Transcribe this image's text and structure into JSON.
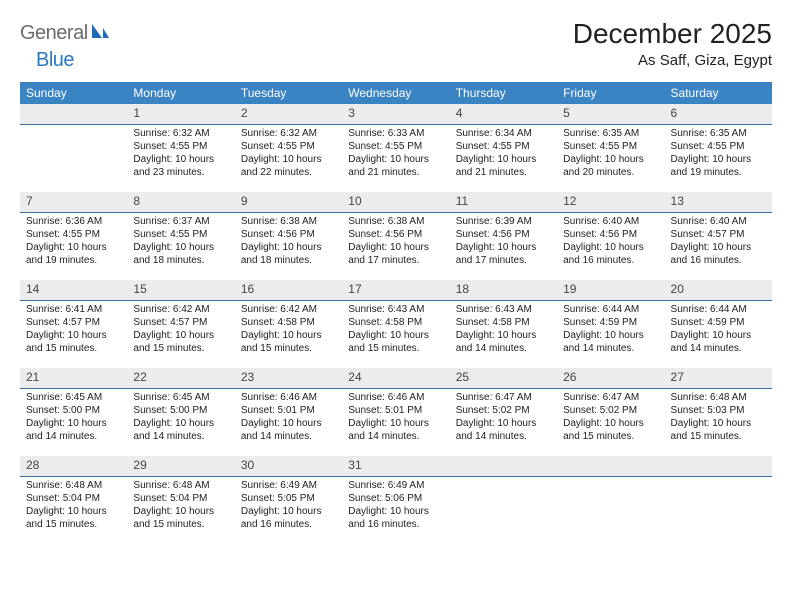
{
  "logo": {
    "part1": "General",
    "part2": "Blue"
  },
  "title": "December 2025",
  "location": "As Saff, Giza, Egypt",
  "colors": {
    "header_bg": "#3b84c4",
    "header_fg": "#ffffff",
    "daynum_bg": "#ececec",
    "daynum_border": "#3b6fa0",
    "logo_gray": "#6a6a6a",
    "logo_blue": "#2a7ac0"
  },
  "weekdays": [
    "Sunday",
    "Monday",
    "Tuesday",
    "Wednesday",
    "Thursday",
    "Friday",
    "Saturday"
  ],
  "days": [
    {
      "n": 1,
      "sr": "6:32 AM",
      "ss": "4:55 PM",
      "dl": "10 hours and 23 minutes."
    },
    {
      "n": 2,
      "sr": "6:32 AM",
      "ss": "4:55 PM",
      "dl": "10 hours and 22 minutes."
    },
    {
      "n": 3,
      "sr": "6:33 AM",
      "ss": "4:55 PM",
      "dl": "10 hours and 21 minutes."
    },
    {
      "n": 4,
      "sr": "6:34 AM",
      "ss": "4:55 PM",
      "dl": "10 hours and 21 minutes."
    },
    {
      "n": 5,
      "sr": "6:35 AM",
      "ss": "4:55 PM",
      "dl": "10 hours and 20 minutes."
    },
    {
      "n": 6,
      "sr": "6:35 AM",
      "ss": "4:55 PM",
      "dl": "10 hours and 19 minutes."
    },
    {
      "n": 7,
      "sr": "6:36 AM",
      "ss": "4:55 PM",
      "dl": "10 hours and 19 minutes."
    },
    {
      "n": 8,
      "sr": "6:37 AM",
      "ss": "4:55 PM",
      "dl": "10 hours and 18 minutes."
    },
    {
      "n": 9,
      "sr": "6:38 AM",
      "ss": "4:56 PM",
      "dl": "10 hours and 18 minutes."
    },
    {
      "n": 10,
      "sr": "6:38 AM",
      "ss": "4:56 PM",
      "dl": "10 hours and 17 minutes."
    },
    {
      "n": 11,
      "sr": "6:39 AM",
      "ss": "4:56 PM",
      "dl": "10 hours and 17 minutes."
    },
    {
      "n": 12,
      "sr": "6:40 AM",
      "ss": "4:56 PM",
      "dl": "10 hours and 16 minutes."
    },
    {
      "n": 13,
      "sr": "6:40 AM",
      "ss": "4:57 PM",
      "dl": "10 hours and 16 minutes."
    },
    {
      "n": 14,
      "sr": "6:41 AM",
      "ss": "4:57 PM",
      "dl": "10 hours and 15 minutes."
    },
    {
      "n": 15,
      "sr": "6:42 AM",
      "ss": "4:57 PM",
      "dl": "10 hours and 15 minutes."
    },
    {
      "n": 16,
      "sr": "6:42 AM",
      "ss": "4:58 PM",
      "dl": "10 hours and 15 minutes."
    },
    {
      "n": 17,
      "sr": "6:43 AM",
      "ss": "4:58 PM",
      "dl": "10 hours and 15 minutes."
    },
    {
      "n": 18,
      "sr": "6:43 AM",
      "ss": "4:58 PM",
      "dl": "10 hours and 14 minutes."
    },
    {
      "n": 19,
      "sr": "6:44 AM",
      "ss": "4:59 PM",
      "dl": "10 hours and 14 minutes."
    },
    {
      "n": 20,
      "sr": "6:44 AM",
      "ss": "4:59 PM",
      "dl": "10 hours and 14 minutes."
    },
    {
      "n": 21,
      "sr": "6:45 AM",
      "ss": "5:00 PM",
      "dl": "10 hours and 14 minutes."
    },
    {
      "n": 22,
      "sr": "6:45 AM",
      "ss": "5:00 PM",
      "dl": "10 hours and 14 minutes."
    },
    {
      "n": 23,
      "sr": "6:46 AM",
      "ss": "5:01 PM",
      "dl": "10 hours and 14 minutes."
    },
    {
      "n": 24,
      "sr": "6:46 AM",
      "ss": "5:01 PM",
      "dl": "10 hours and 14 minutes."
    },
    {
      "n": 25,
      "sr": "6:47 AM",
      "ss": "5:02 PM",
      "dl": "10 hours and 14 minutes."
    },
    {
      "n": 26,
      "sr": "6:47 AM",
      "ss": "5:02 PM",
      "dl": "10 hours and 15 minutes."
    },
    {
      "n": 27,
      "sr": "6:48 AM",
      "ss": "5:03 PM",
      "dl": "10 hours and 15 minutes."
    },
    {
      "n": 28,
      "sr": "6:48 AM",
      "ss": "5:04 PM",
      "dl": "10 hours and 15 minutes."
    },
    {
      "n": 29,
      "sr": "6:48 AM",
      "ss": "5:04 PM",
      "dl": "10 hours and 15 minutes."
    },
    {
      "n": 30,
      "sr": "6:49 AM",
      "ss": "5:05 PM",
      "dl": "10 hours and 16 minutes."
    },
    {
      "n": 31,
      "sr": "6:49 AM",
      "ss": "5:06 PM",
      "dl": "10 hours and 16 minutes."
    }
  ],
  "labels": {
    "sunrise": "Sunrise:",
    "sunset": "Sunset:",
    "daylight": "Daylight:"
  },
  "layout": {
    "first_weekday_index": 1,
    "rows": 5,
    "cols": 7
  }
}
